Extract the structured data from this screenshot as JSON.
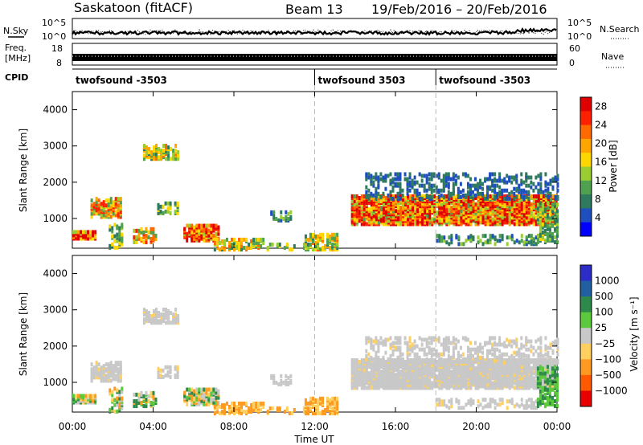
{
  "header": {
    "station": "Saskatoon (fitACF)",
    "beam": "Beam 13",
    "date_range": "19/Feb/2016 – 20/Feb/2016"
  },
  "noise_panel": {
    "left_label": "N.Sky",
    "right_label": "N.Search",
    "left_ticks": [
      "10^5",
      "10^0"
    ],
    "right_ticks": [
      "10^5",
      "10^0"
    ]
  },
  "freq_panel": {
    "left_label_1": "Freq.",
    "left_label_2": "[MHz]",
    "right_label": "Nave",
    "left_ticks": [
      "18",
      "8"
    ],
    "right_ticks": [
      "60",
      "0"
    ]
  },
  "cpid_panel": {
    "label": "CPID",
    "segments": [
      {
        "start_hour": 0,
        "end_hour": 12,
        "text": "twofsound -3503"
      },
      {
        "start_hour": 12,
        "end_hour": 18,
        "text": "twofsound 3503"
      },
      {
        "start_hour": 18,
        "end_hour": 24,
        "text": "twofsound -3503"
      }
    ]
  },
  "chart_data": [
    {
      "type": "heatmap",
      "id": "power",
      "ylabel": "Slant Range [km]",
      "ylim": [
        180,
        4500
      ],
      "y_ticks": [
        1000,
        2000,
        3000,
        4000
      ],
      "xlim": [
        0,
        24
      ],
      "colorbar_label": "Power [dB]",
      "colorbar_ticks": [
        4,
        8,
        12,
        16,
        20,
        24,
        28
      ],
      "colorbar_range": [
        0,
        30
      ],
      "colors": [
        "#0000ff",
        "#1f4fbf",
        "#2e7a5e",
        "#4fa04f",
        "#9acd32",
        "#ffd700",
        "#ffa500",
        "#ff6a00",
        "#ff2000",
        "#e00000"
      ]
    },
    {
      "type": "heatmap",
      "id": "velocity",
      "ylabel": "Slant Range [km]",
      "ylim": [
        180,
        4500
      ],
      "y_ticks": [
        1000,
        2000,
        3000,
        4000
      ],
      "xlim": [
        0,
        24
      ],
      "colorbar_label": "Velocity [m s⁻¹]",
      "colorbar_ticks": [
        "1000",
        "500",
        "100",
        "25",
        "−25",
        "−100",
        "−500",
        "−1000"
      ],
      "colors": [
        "#2c2cc8",
        "#2060a0",
        "#2e8a4a",
        "#5cc83c",
        "#c8c8c8",
        "#ffd060",
        "#ff9a20",
        "#ff5a00",
        "#e80000"
      ]
    }
  ],
  "x_axis": {
    "label": "Time UT",
    "ticks": [
      "00:00",
      "04:00",
      "08:00",
      "12:00",
      "16:00",
      "20:00",
      "00:00"
    ],
    "tick_hours": [
      0,
      4,
      8,
      12,
      16,
      20,
      24
    ]
  },
  "dashed_lines_hours": [
    12,
    18
  ]
}
